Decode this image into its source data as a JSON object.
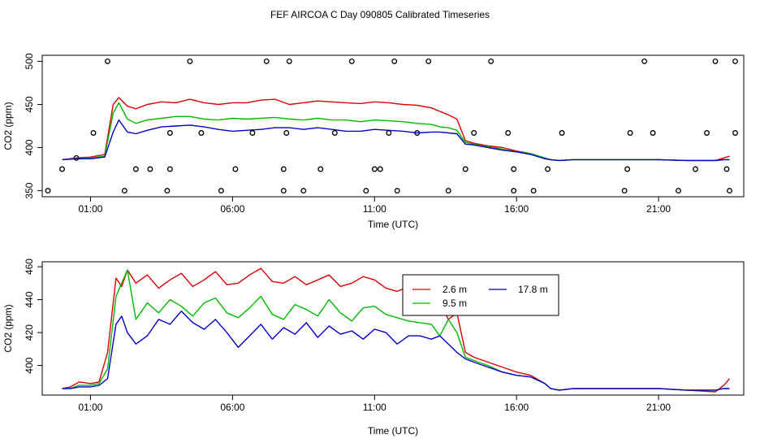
{
  "figure": {
    "title": "FEF AIRCOA C  Day 090805  Calibrated Timeseries"
  },
  "colors": {
    "s2_6": "#dd0000",
    "s9_5": "#00bb00",
    "s17_8": "#0000cc",
    "frame": "#000000"
  },
  "chart_data": [
    {
      "type": "line",
      "panel": "top",
      "title": "FEF AIRCOA C  Day 090805  Calibrated Timeseries",
      "xlabel": "Time (UTC)",
      "ylabel": "CO2 (ppm)",
      "xlim": [
        -0.7,
        24.0
      ],
      "ylim": [
        343,
        507
      ],
      "x_ticks": [
        {
          "v": 1,
          "label": "01:00"
        },
        {
          "v": 6,
          "label": "06:00"
        },
        {
          "v": 11,
          "label": "11:00"
        },
        {
          "v": 16,
          "label": "16:00"
        },
        {
          "v": 21,
          "label": "21:00"
        }
      ],
      "y_ticks": [
        {
          "v": 350,
          "label": "350"
        },
        {
          "v": 400,
          "label": "400"
        },
        {
          "v": 450,
          "label": "450"
        },
        {
          "v": 500,
          "label": "500"
        }
      ],
      "grid": false,
      "series": [
        {
          "color_key": "s2_6",
          "x": [
            0,
            0.5,
            1,
            1.5,
            1.8,
            2,
            2.3,
            2.6,
            3,
            3.5,
            4,
            4.5,
            5,
            5.5,
            6,
            6.5,
            7,
            7.5,
            8,
            8.5,
            9,
            9.5,
            10,
            10.5,
            11,
            11.5,
            12,
            12.5,
            13,
            13.3,
            13.6,
            13.9,
            14.2,
            14.5,
            15,
            15.5,
            16,
            16.5,
            17,
            17.2,
            17.5,
            18,
            19,
            20,
            21,
            22,
            23,
            23.3,
            23.5
          ],
          "y": [
            386,
            388,
            389,
            392,
            450,
            458,
            448,
            445,
            450,
            453,
            452,
            456,
            452,
            450,
            452,
            452,
            455,
            456,
            450,
            452,
            454,
            453,
            452,
            451,
            453,
            452,
            450,
            449,
            446,
            442,
            438,
            433,
            408,
            405,
            402,
            400,
            396,
            393,
            388,
            386,
            385,
            386,
            386,
            386,
            386,
            385,
            385,
            388,
            390
          ]
        },
        {
          "color_key": "s9_5",
          "x": [
            0,
            0.5,
            1,
            1.5,
            1.8,
            2,
            2.3,
            2.6,
            3,
            3.5,
            4,
            4.5,
            5,
            5.5,
            6,
            6.5,
            7,
            7.5,
            8,
            8.5,
            9,
            9.5,
            10,
            10.5,
            11,
            11.5,
            12,
            12.5,
            13,
            13.3,
            13.6,
            13.9,
            14.2,
            14.5,
            15,
            15.5,
            16,
            16.5,
            17,
            17.2,
            17.5,
            18,
            19,
            20,
            21,
            22,
            23,
            23.3,
            23.5
          ],
          "y": [
            386,
            387,
            388,
            390,
            440,
            452,
            433,
            428,
            432,
            434,
            436,
            436,
            433,
            432,
            434,
            433,
            434,
            435,
            433,
            432,
            434,
            432,
            432,
            430,
            432,
            431,
            430,
            428,
            427,
            424,
            423,
            420,
            406,
            404,
            401,
            398,
            395,
            393,
            388,
            386,
            385,
            386,
            386,
            386,
            386,
            385,
            385,
            386,
            386
          ]
        },
        {
          "color_key": "s17_8",
          "x": [
            0,
            0.5,
            1,
            1.5,
            1.8,
            2,
            2.3,
            2.6,
            3,
            3.5,
            4,
            4.5,
            5,
            5.5,
            6,
            6.5,
            7,
            7.5,
            8,
            8.5,
            9,
            9.5,
            10,
            10.5,
            11,
            11.5,
            12,
            12.5,
            13,
            13.3,
            13.6,
            13.9,
            14.2,
            14.5,
            15,
            15.5,
            16,
            16.5,
            17,
            17.2,
            17.5,
            18,
            19,
            20,
            21,
            22,
            23,
            23.3,
            23.5
          ],
          "y": [
            386,
            387,
            387,
            389,
            418,
            432,
            418,
            416,
            420,
            424,
            425,
            426,
            424,
            421,
            419,
            420,
            421,
            423,
            423,
            421,
            423,
            421,
            419,
            419,
            421,
            420,
            419,
            417,
            418,
            418,
            417,
            416,
            404,
            403,
            400,
            397,
            395,
            392,
            387,
            386,
            385,
            386,
            386,
            386,
            386,
            385,
            385,
            386,
            386
          ]
        }
      ],
      "markers": {
        "shape": "open-circle",
        "x": [
          -0.5,
          0,
          0.5,
          1.1,
          1.6,
          2.2,
          2.6,
          3.1,
          3.7,
          3.8,
          3.8,
          4.5,
          4.9,
          5.6,
          6.1,
          6.7,
          7.2,
          7.8,
          7.8,
          7.9,
          8,
          8.5,
          9.1,
          9.6,
          10.2,
          10.7,
          11,
          11.2,
          11.5,
          11.7,
          11.8,
          12.5,
          12.9,
          13.6,
          14.2,
          14.5,
          15.1,
          15.7,
          15.9,
          15.9,
          16.6,
          17.1,
          17.6,
          19.8,
          19.9,
          20,
          20.5,
          20.8,
          21.7,
          22.3,
          22.7,
          23,
          23.4,
          23.5,
          23.7,
          23.7
        ],
        "y": [
          350,
          375,
          388,
          417,
          500,
          350,
          375,
          375,
          350,
          375,
          417,
          500,
          417,
          350,
          375,
          417,
          500,
          350,
          375,
          417,
          500,
          350,
          375,
          417,
          500,
          350,
          375,
          375,
          417,
          500,
          350,
          417,
          500,
          350,
          375,
          417,
          500,
          417,
          375,
          350,
          350,
          375,
          417,
          350,
          375,
          417,
          500,
          417,
          350,
          375,
          417,
          500,
          375,
          350,
          500,
          417
        ]
      }
    },
    {
      "type": "line",
      "panel": "bottom",
      "xlabel": "Time (UTC)",
      "ylabel": "CO2 (ppm)",
      "xlim": [
        -0.7,
        24.0
      ],
      "ylim": [
        382,
        463
      ],
      "x_ticks": [
        {
          "v": 1,
          "label": "01:00"
        },
        {
          "v": 6,
          "label": "06:00"
        },
        {
          "v": 11,
          "label": "11:00"
        },
        {
          "v": 16,
          "label": "16:00"
        },
        {
          "v": 21,
          "label": "21:00"
        }
      ],
      "y_ticks": [
        {
          "v": 400,
          "label": "400"
        },
        {
          "v": 420,
          "label": "420"
        },
        {
          "v": 440,
          "label": "440"
        },
        {
          "v": 460,
          "label": "460"
        }
      ],
      "grid": false,
      "legend": {
        "placement": "top-right",
        "entries": [
          {
            "name": "2.6 m",
            "color_key": "s2_6"
          },
          {
            "name": "9.5 m",
            "color_key": "s9_5"
          },
          {
            "name": "17.8 m",
            "color_key": "s17_8"
          }
        ]
      },
      "series": [
        {
          "name": "2.6 m",
          "color_key": "s2_6",
          "x": [
            0,
            0.3,
            0.6,
            1,
            1.3,
            1.6,
            1.9,
            2.1,
            2.3,
            2.6,
            3,
            3.4,
            3.8,
            4.2,
            4.6,
            5,
            5.4,
            5.8,
            6.2,
            6.6,
            7,
            7.4,
            7.8,
            8.2,
            8.6,
            9,
            9.4,
            9.8,
            10.2,
            10.6,
            11,
            11.4,
            11.8,
            12.2,
            12.6,
            13,
            13.3,
            13.6,
            13.9,
            14.2,
            14.5,
            15,
            15.5,
            16,
            16.5,
            17,
            17.2,
            17.5,
            18,
            19,
            20,
            21,
            22,
            23,
            23.3,
            23.5
          ],
          "y": [
            386,
            387,
            390,
            389,
            390,
            408,
            453,
            448,
            458,
            450,
            455,
            447,
            452,
            456,
            448,
            452,
            457,
            449,
            450,
            455,
            459,
            451,
            450,
            454,
            449,
            452,
            455,
            448,
            450,
            454,
            452,
            447,
            445,
            448,
            446,
            445,
            438,
            428,
            432,
            408,
            405,
            402,
            399,
            396,
            394,
            389,
            386,
            385,
            386,
            386,
            386,
            386,
            385,
            384,
            388,
            392
          ]
        },
        {
          "name": "9.5 m",
          "color_key": "s9_5",
          "x": [
            0,
            0.3,
            0.6,
            1,
            1.3,
            1.6,
            1.9,
            2.1,
            2.3,
            2.6,
            3,
            3.4,
            3.8,
            4.2,
            4.6,
            5,
            5.4,
            5.8,
            6.2,
            6.6,
            7,
            7.4,
            7.8,
            8.2,
            8.6,
            9,
            9.4,
            9.8,
            10.2,
            10.6,
            11,
            11.4,
            11.8,
            12.2,
            12.6,
            13,
            13.3,
            13.6,
            13.9,
            14.2,
            14.5,
            15,
            15.5,
            16,
            16.5,
            17,
            17.2,
            17.5,
            18,
            19,
            20,
            21,
            22,
            23,
            23.3,
            23.5
          ],
          "y": [
            386,
            386,
            388,
            388,
            389,
            398,
            442,
            450,
            458,
            428,
            438,
            432,
            440,
            436,
            430,
            438,
            441,
            432,
            429,
            435,
            442,
            431,
            428,
            437,
            434,
            430,
            440,
            432,
            427,
            435,
            436,
            431,
            429,
            427,
            426,
            425,
            418,
            428,
            420,
            405,
            403,
            400,
            396,
            394,
            393,
            389,
            386,
            385,
            386,
            386,
            386,
            386,
            385,
            385,
            386,
            386
          ]
        },
        {
          "name": "17.8 m",
          "color_key": "s17_8",
          "x": [
            0,
            0.3,
            0.6,
            1,
            1.3,
            1.6,
            1.9,
            2.1,
            2.3,
            2.6,
            3,
            3.4,
            3.8,
            4.2,
            4.6,
            5,
            5.4,
            5.8,
            6.2,
            6.6,
            7,
            7.4,
            7.8,
            8.2,
            8.6,
            9,
            9.4,
            9.8,
            10.2,
            10.6,
            11,
            11.4,
            11.8,
            12.2,
            12.6,
            13,
            13.3,
            13.6,
            13.9,
            14.2,
            14.5,
            15,
            15.5,
            16,
            16.5,
            17,
            17.2,
            17.5,
            18,
            19,
            20,
            21,
            22,
            23,
            23.3,
            23.5
          ],
          "y": [
            386,
            386,
            387,
            387,
            388,
            392,
            425,
            430,
            420,
            413,
            418,
            428,
            425,
            433,
            426,
            422,
            428,
            420,
            411,
            418,
            425,
            416,
            423,
            419,
            426,
            417,
            424,
            419,
            421,
            416,
            422,
            420,
            413,
            418,
            418,
            416,
            418,
            413,
            408,
            404,
            402,
            399,
            396,
            394,
            393,
            389,
            386,
            385,
            386,
            386,
            386,
            386,
            385,
            385,
            386,
            386
          ]
        }
      ]
    }
  ]
}
